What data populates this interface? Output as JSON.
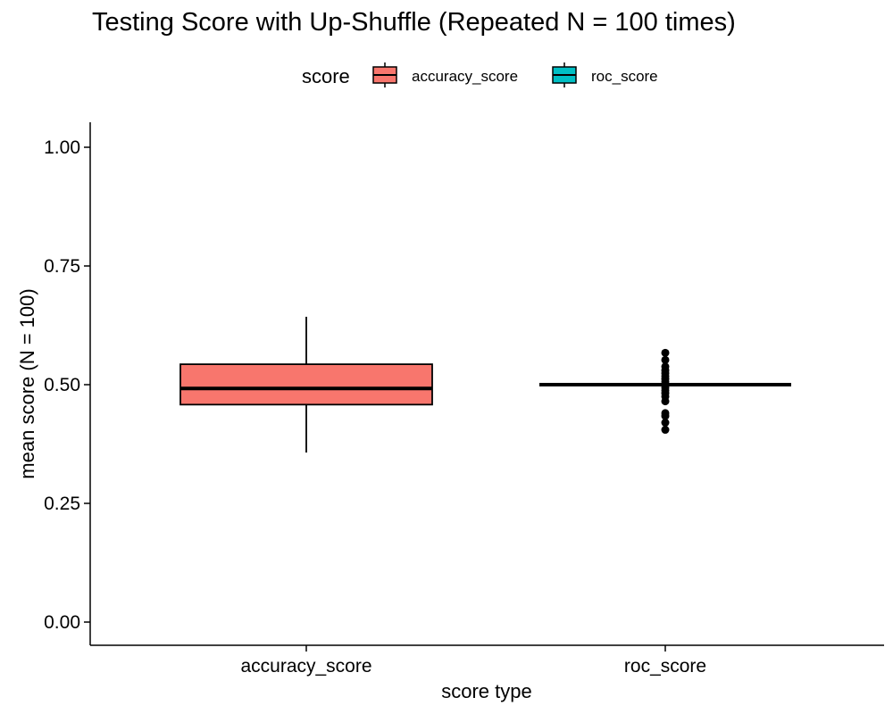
{
  "chart_data": {
    "type": "boxplot",
    "title": "Testing Score with Up-Shuffle (Repeated N = 100 times)",
    "xlabel": "score type",
    "ylabel": "mean score (N = 100)",
    "ylim": [
      -0.05,
      1.05
    ],
    "yticks": [
      "0.00",
      "0.25",
      "0.50",
      "0.75",
      "1.00"
    ],
    "ytick_values": [
      0,
      0.25,
      0.5,
      0.75,
      1.0
    ],
    "categories": [
      "accuracy_score",
      "roc_score"
    ],
    "legend": {
      "title": "score",
      "placement": "top",
      "entries": [
        "accuracy_score",
        "roc_score"
      ]
    },
    "colors": {
      "accuracy_score": "#F8766D",
      "roc_score": "#00BFC4"
    },
    "series": [
      {
        "name": "accuracy_score",
        "min": 0.357,
        "q1": 0.458,
        "median": 0.492,
        "q3": 0.543,
        "max": 0.643,
        "outliers": []
      },
      {
        "name": "roc_score",
        "min": 0.5,
        "q1": 0.5,
        "median": 0.5,
        "q3": 0.5,
        "max": 0.5,
        "outliers": [
          0.405,
          0.42,
          0.434,
          0.44,
          0.465,
          0.475,
          0.482,
          0.488,
          0.494,
          0.506,
          0.512,
          0.518,
          0.524,
          0.53,
          0.538,
          0.552,
          0.567
        ]
      }
    ],
    "grid": false
  }
}
